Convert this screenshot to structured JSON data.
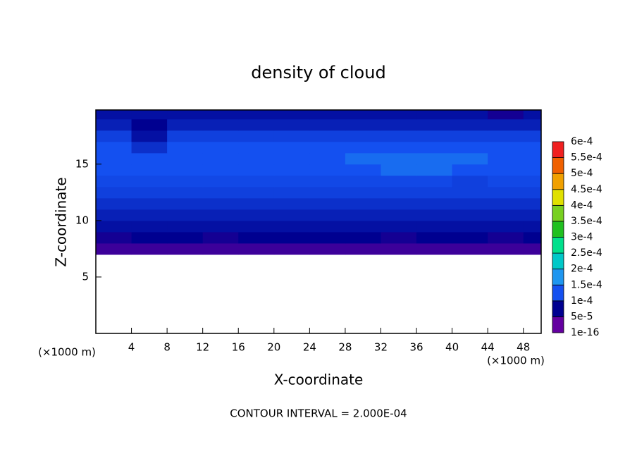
{
  "chart_data": {
    "type": "contour",
    "title": "density of cloud",
    "x_label": "X-coordinate",
    "y_label": "Z-coordinate",
    "x_unit": "(×1000 m)",
    "y_unit": "(×1000 m)",
    "footnote": "CONTOUR INTERVAL = 2.000E-04",
    "xlim": [
      0,
      50
    ],
    "ylim": [
      0,
      19.8
    ],
    "xticks": [
      4,
      8,
      12,
      16,
      20,
      24,
      28,
      32,
      36,
      40,
      44,
      48
    ],
    "yticks": [
      5,
      10,
      15
    ],
    "x": [
      2,
      6,
      10,
      14,
      18,
      22,
      26,
      30,
      34,
      38,
      42,
      46,
      50
    ],
    "z": [
      7.5,
      8.5,
      9.5,
      10.5,
      11.5,
      12.5,
      13.5,
      14.5,
      15.5,
      16.5,
      17.5,
      18.5,
      19.5
    ],
    "values": [
      [
        2e-05,
        2e-05,
        2e-05,
        2e-05,
        2e-05,
        2e-05,
        2e-05,
        2e-05,
        2e-05,
        2e-05,
        2e-05,
        2e-05,
        2e-05
      ],
      [
        4e-05,
        5e-05,
        5e-05,
        4e-05,
        5e-05,
        5e-05,
        5e-05,
        5e-05,
        4e-05,
        5e-05,
        5e-05,
        4e-05,
        5e-05
      ],
      [
        6e-05,
        6e-05,
        6e-05,
        6e-05,
        6e-05,
        6e-05,
        6e-05,
        6e-05,
        6e-05,
        6e-05,
        6e-05,
        6e-05,
        6e-05
      ],
      [
        7e-05,
        7e-05,
        7e-05,
        7e-05,
        7e-05,
        7e-05,
        7e-05,
        7e-05,
        7e-05,
        7e-05,
        7e-05,
        7e-05,
        7e-05
      ],
      [
        8e-05,
        8e-05,
        8e-05,
        8e-05,
        8e-05,
        8e-05,
        8e-05,
        8e-05,
        8e-05,
        8e-05,
        8e-05,
        8e-05,
        8e-05
      ],
      [
        9e-05,
        9e-05,
        9e-05,
        9e-05,
        9e-05,
        9e-05,
        9e-05,
        9e-05,
        9e-05,
        9e-05,
        9e-05,
        9e-05,
        9e-05
      ],
      [
        9.5e-05,
        9.5e-05,
        9.5e-05,
        9.5e-05,
        9.5e-05,
        9.5e-05,
        9.5e-05,
        9.5e-05,
        9.5e-05,
        9.5e-05,
        9e-05,
        9.5e-05,
        9.5e-05
      ],
      [
        0.0001,
        0.0001,
        0.0001,
        0.0001,
        0.0001,
        0.0001,
        0.0001,
        0.0001,
        0.00012,
        0.00012,
        0.0001,
        0.0001,
        0.0001
      ],
      [
        0.0001,
        0.0001,
        0.0001,
        0.0001,
        0.0001,
        0.0001,
        0.0001,
        0.00012,
        0.00012,
        0.00012,
        0.00012,
        0.0001,
        0.0001
      ],
      [
        0.0001,
        8e-05,
        0.0001,
        0.0001,
        0.0001,
        0.0001,
        0.0001,
        0.0001,
        0.0001,
        0.0001,
        0.0001,
        0.0001,
        0.0001
      ],
      [
        9e-05,
        6e-05,
        9e-05,
        9e-05,
        9e-05,
        9e-05,
        9e-05,
        9e-05,
        9e-05,
        9e-05,
        9e-05,
        9e-05,
        9e-05
      ],
      [
        7e-05,
        5e-05,
        7e-05,
        7e-05,
        7e-05,
        7e-05,
        7e-05,
        7e-05,
        7e-05,
        7e-05,
        7e-05,
        7e-05,
        7e-05
      ],
      [
        6e-05,
        6e-05,
        6e-05,
        6e-05,
        6e-05,
        6e-05,
        6e-05,
        6e-05,
        6e-05,
        6e-05,
        6e-05,
        4e-05,
        6e-05
      ]
    ],
    "levels": [
      {
        "value": 1e-16,
        "label": "1e-16"
      },
      {
        "value": 5e-05,
        "label": "5e-5"
      },
      {
        "value": 0.0001,
        "label": "1e-4"
      },
      {
        "value": 0.00015,
        "label": "1.5e-4"
      },
      {
        "value": 0.0002,
        "label": "2e-4"
      },
      {
        "value": 0.00025,
        "label": "2.5e-4"
      },
      {
        "value": 0.0003,
        "label": "3e-4"
      },
      {
        "value": 0.00035,
        "label": "3.5e-4"
      },
      {
        "value": 0.0004,
        "label": "4e-4"
      },
      {
        "value": 0.00045,
        "label": "4.5e-4"
      },
      {
        "value": 0.0005,
        "label": "5e-4"
      },
      {
        "value": 0.00055,
        "label": "5.5e-4"
      },
      {
        "value": 0.0006,
        "label": "6e-4"
      }
    ],
    "level_colors": [
      "#6400a0",
      "#000090",
      "#1450f0",
      "#1e96f0",
      "#00c8c8",
      "#00e08c",
      "#20c020",
      "#78d020",
      "#e0e000",
      "#f0a000",
      "#f06000",
      "#f02020",
      "#f08c8c"
    ]
  }
}
